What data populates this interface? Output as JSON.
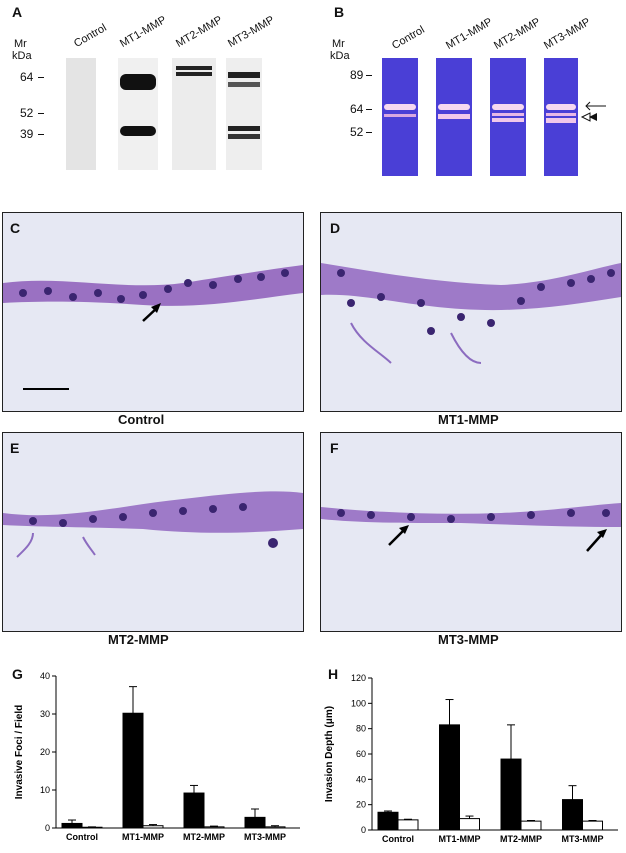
{
  "panel_a": {
    "letter": "A",
    "mr_label": "Mr",
    "kda_label": "kDa",
    "markers": [
      "64",
      "52",
      "39"
    ],
    "lanes": [
      "Control",
      "MT1-MMP",
      "MT2-MMP",
      "MT3-MMP"
    ]
  },
  "panel_b": {
    "letter": "B",
    "mr_label": "Mr",
    "kda_label": "kDa",
    "markers": [
      "89",
      "64",
      "52"
    ],
    "lanes": [
      "Control",
      "MT1-MMP",
      "MT2-MMP",
      "MT3-MMP"
    ],
    "gel_color": "#4a3fd6"
  },
  "micrographs": [
    {
      "letter": "C",
      "caption": "Control"
    },
    {
      "letter": "D",
      "caption": "MT1-MMP"
    },
    {
      "letter": "E",
      "caption": "MT2-MMP"
    },
    {
      "letter": "F",
      "caption": "MT3-MMP"
    }
  ],
  "chart_data": [
    {
      "type": "bar",
      "panel": "G",
      "ylabel": "Invasive Foci / Field",
      "ylim": [
        0,
        40
      ],
      "yticks": [
        "0",
        "10",
        "20",
        "30",
        "40"
      ],
      "categories": [
        "Control",
        "MT1-MMP",
        "MT2-MMP",
        "MT3-MMP"
      ],
      "series": [
        {
          "color": "#000000",
          "values": [
            1.2,
            30.2,
            9.2,
            2.8
          ],
          "errors": [
            0.9,
            7.0,
            2.0,
            2.2
          ]
        },
        {
          "color": "#ffffff",
          "values": [
            0.2,
            0.6,
            0.3,
            0.3
          ],
          "errors": [
            0.1,
            0.3,
            0.2,
            0.3
          ]
        }
      ]
    },
    {
      "type": "bar",
      "panel": "H",
      "ylabel": "Invasion Depth (μm)",
      "ylim": [
        0,
        120
      ],
      "yticks": [
        "0",
        "20",
        "40",
        "60",
        "80",
        "100",
        "120"
      ],
      "categories": [
        "Control",
        "MT1-MMP",
        "MT2-MMP",
        "MT3-MMP"
      ],
      "series": [
        {
          "color": "#000000",
          "values": [
            14,
            83,
            56,
            24
          ],
          "errors": [
            1.0,
            20,
            27,
            11
          ]
        },
        {
          "color": "#ffffff",
          "values": [
            8,
            9,
            7,
            7
          ],
          "errors": [
            0.5,
            2,
            0.5,
            0.5
          ]
        }
      ]
    }
  ]
}
